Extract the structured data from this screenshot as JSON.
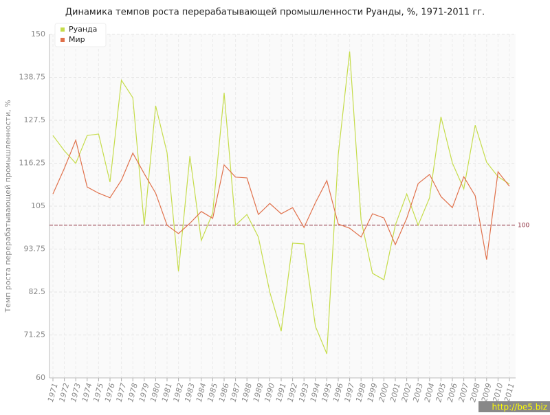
{
  "chart_data": {
    "type": "line",
    "title": "Динамика темпов роста перерабатывающей промышленности Руанды, %, 1971-2011 гг.",
    "y_label": "Темп роста перерабатывающей промышленности, %",
    "categories": [
      "1971",
      "1972",
      "1973",
      "1974",
      "1975",
      "1976",
      "1977",
      "1978",
      "1979",
      "1980",
      "1981",
      "1982",
      "1983",
      "1984",
      "1985",
      "1986",
      "1987",
      "1988",
      "1989",
      "1990",
      "1991",
      "1992",
      "1993",
      "1994",
      "1995",
      "1996",
      "1997",
      "1998",
      "1999",
      "2000",
      "2001",
      "2002",
      "2003",
      "2004",
      "2005",
      "2006",
      "2007",
      "2008",
      "2009",
      "2010",
      "2011"
    ],
    "series": [
      {
        "name": "Руанда",
        "color": "#c5dc4a",
        "values": [
          123.5,
          119.5,
          116.2,
          123.5,
          123.9,
          111.3,
          138,
          133.4,
          100,
          131.3,
          119,
          87.9,
          118.1,
          96,
          103.2,
          134.7,
          100,
          102.8,
          96.9,
          82.5,
          72.2,
          95.3,
          95.1,
          73.5,
          66.3,
          118.5,
          145.5,
          101.4,
          87.4,
          85.7,
          100,
          108.2,
          100,
          107.2,
          128.4,
          116.3,
          109.5,
          126.2,
          116.5,
          112.7,
          110.8
        ]
      },
      {
        "name": "Мир",
        "color": "#e0704a",
        "values": [
          108.2,
          114.9,
          122.3,
          110,
          108.4,
          107.2,
          111.8,
          118.9,
          113.5,
          108.4,
          100,
          97.8,
          100.5,
          103.6,
          101.8,
          115.8,
          112.6,
          112.4,
          102.8,
          105.7,
          103,
          104.6,
          99.4,
          105.9,
          111.7,
          100.3,
          99.2,
          96.9,
          103,
          101.9,
          94.9,
          101.8,
          110.9,
          113.3,
          107.5,
          104.6,
          112.7,
          107.7,
          91,
          114,
          110.2
        ]
      }
    ],
    "ylim": [
      60,
      150
    ],
    "yticks": [
      60,
      71.25,
      82.5,
      93.75,
      105,
      116.25,
      127.5,
      138.75,
      150
    ],
    "reference_line": 100,
    "reference_color": "#8b2a3a",
    "grid": true,
    "legend": "top-left",
    "watermark": "http://be5.biz"
  }
}
